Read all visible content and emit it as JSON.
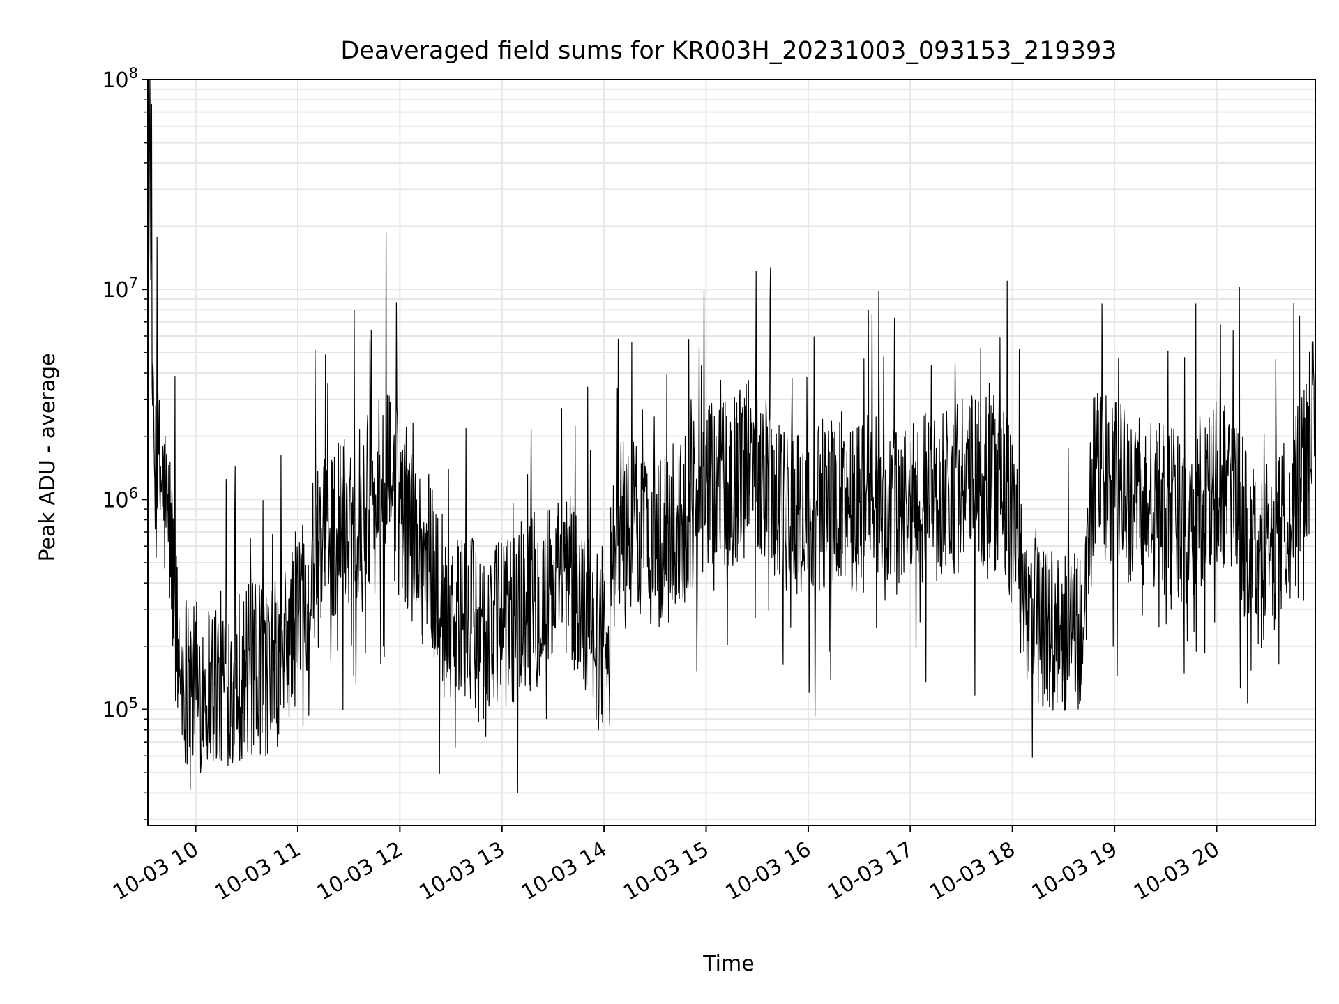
{
  "chart_data": {
    "type": "line",
    "title": "Deaveraged field sums for KR003H_20231003_093153_219393",
    "xlabel": "Time",
    "ylabel": "Peak ADU - average",
    "xlim": [
      "2023-10-03 09:31:53",
      "2023-10-03 20:58:00"
    ],
    "ylim": [
      28000,
      100000000
    ],
    "y_scale": "log",
    "x_ticks": [
      "2023-10-03 10:00",
      "2023-10-03 11:00",
      "2023-10-03 12:00",
      "2023-10-03 13:00",
      "2023-10-03 14:00",
      "2023-10-03 15:00",
      "2023-10-03 16:00",
      "2023-10-03 17:00",
      "2023-10-03 18:00",
      "2023-10-03 19:00",
      "2023-10-03 20:00"
    ],
    "x_tick_labels": [
      "10-03 10",
      "10-03 11",
      "10-03 12",
      "10-03 13",
      "10-03 14",
      "10-03 15",
      "10-03 16",
      "10-03 17",
      "10-03 18",
      "10-03 19",
      "10-03 20"
    ],
    "y_tick_values": [
      100000,
      1000000,
      10000000,
      100000000
    ],
    "y_tick_bases": [
      "10",
      "10",
      "10",
      "10"
    ],
    "y_tick_exponents": [
      "5",
      "6",
      "7",
      "8"
    ],
    "grid": "on (major and minor)",
    "series": [
      {
        "color": "#000000",
        "description": "high-frequency noisy signal; baseline levels (in ADU) sampled at key times",
        "x": [
          "2023-10-03 09:32",
          "2023-10-03 09:33",
          "2023-10-03 09:35",
          "2023-10-03 09:40",
          "2023-10-03 09:45",
          "2023-10-03 09:50",
          "2023-10-03 10:00",
          "2023-10-03 10:30",
          "2023-10-03 10:50",
          "2023-10-03 11:05",
          "2023-10-03 11:20",
          "2023-10-03 11:40",
          "2023-10-03 11:55",
          "2023-10-03 12:10",
          "2023-10-03 12:30",
          "2023-10-03 12:50",
          "2023-10-03 13:10",
          "2023-10-03 13:40",
          "2023-10-03 13:58",
          "2023-10-03 14:10",
          "2023-10-03 14:35",
          "2023-10-03 14:55",
          "2023-10-03 15:30",
          "2023-10-03 15:50",
          "2023-10-03 16:20",
          "2023-10-03 16:50",
          "2023-10-03 17:30",
          "2023-10-03 17:55",
          "2023-10-03 18:10",
          "2023-10-03 18:40",
          "2023-10-03 18:48",
          "2023-10-03 19:10",
          "2023-10-03 19:40",
          "2023-10-03 20:05",
          "2023-10-03 20:25",
          "2023-10-03 20:45",
          "2023-10-03 20:58"
        ],
        "y": [
          3000000,
          75000000,
          1500000,
          1200000,
          700000,
          160000,
          130000,
          150000,
          160000,
          400000,
          700000,
          1000000,
          1300000,
          600000,
          300000,
          220000,
          300000,
          400000,
          200000,
          800000,
          600000,
          1000000,
          1500000,
          800000,
          1000000,
          900000,
          1200000,
          1200000,
          300000,
          200000,
          1300000,
          1000000,
          800000,
          1200000,
          500000,
          900000,
          2500000
        ]
      }
    ]
  }
}
